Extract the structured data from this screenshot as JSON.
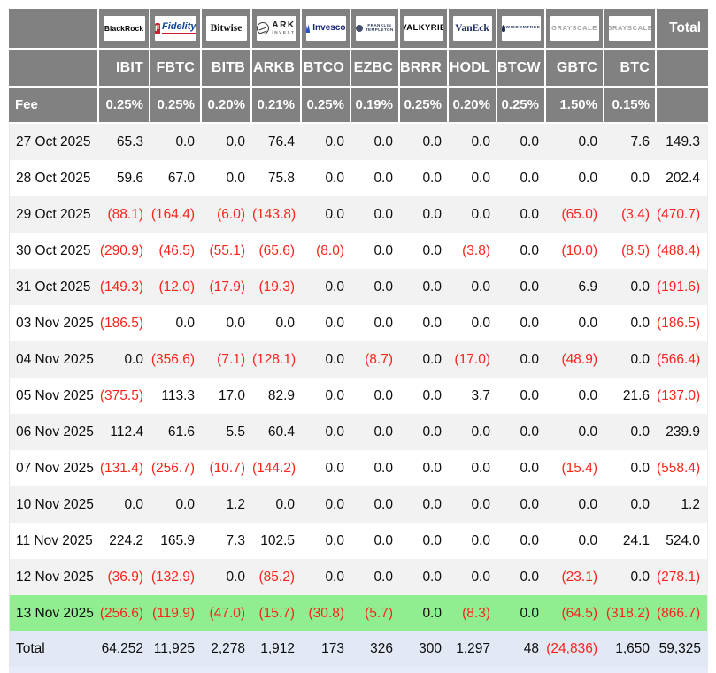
{
  "table": {
    "fee_label": "Fee",
    "total_label": "Total",
    "header_bg": "#818181",
    "stripe_color": "#f2f2f3",
    "highlight_color": "#90ee90",
    "total_row_bg": "#e3e8f5",
    "negative_color": "#fa241c",
    "companies": [
      {
        "id": "blackrock",
        "ticker": "IBIT",
        "fee": "0.25%",
        "logo": {
          "text": "BlackRock"
        }
      },
      {
        "id": "fidelity",
        "ticker": "FBTC",
        "fee": "0.25%",
        "logo": {
          "mark": "F",
          "text": "Fidelity"
        }
      },
      {
        "id": "bitwise",
        "ticker": "BITB",
        "fee": "0.20%",
        "logo": {
          "text": "Bitwise"
        }
      },
      {
        "id": "ark",
        "ticker": "ARKB",
        "fee": "0.21%",
        "logo": {
          "icon": "ark-circle-icon",
          "text": "ARK",
          "sub": "INVEST"
        }
      },
      {
        "id": "invesco",
        "ticker": "BTCO",
        "fee": "0.25%",
        "logo": {
          "icon": "invesco-peaks-icon",
          "text": "Invesco"
        }
      },
      {
        "id": "franklin",
        "ticker": "EZBC",
        "fee": "0.19%",
        "logo": {
          "icon": "franklin-seal-icon",
          "text": "FRANKLIN",
          "sub": "TEMPLETON"
        }
      },
      {
        "id": "valkyrie",
        "ticker": "BRRR",
        "fee": "0.25%",
        "logo": {
          "text": "VALKYRIE"
        }
      },
      {
        "id": "vaneck",
        "ticker": "HODL",
        "fee": "0.20%",
        "logo": {
          "text": "VanEck"
        }
      },
      {
        "id": "wisdomtree",
        "ticker": "BTCW",
        "fee": "0.25%",
        "logo": {
          "icon": "wisdomtree-canopy-icon",
          "text": "WISDOMTREE"
        }
      },
      {
        "id": "grayscale",
        "ticker": "GBTC",
        "fee": "1.50%",
        "logo": {
          "text": "GRAYSCALE"
        }
      },
      {
        "id": "grayscale-mini",
        "ticker": "BTC",
        "fee": "0.15%",
        "logo": {
          "text": "GRAYSCALE"
        }
      }
    ],
    "rows": [
      {
        "date": "27 Oct 2025",
        "values": [
          "65.3",
          "0.0",
          "0.0",
          "76.4",
          "0.0",
          "0.0",
          "0.0",
          "0.0",
          "0.0",
          "0.0",
          "7.6"
        ],
        "total": "149.3"
      },
      {
        "date": "28 Oct 2025",
        "values": [
          "59.6",
          "67.0",
          "0.0",
          "75.8",
          "0.0",
          "0.0",
          "0.0",
          "0.0",
          "0.0",
          "0.0",
          "0.0"
        ],
        "total": "202.4"
      },
      {
        "date": "29 Oct 2025",
        "values": [
          "(88.1)",
          "(164.4)",
          "(6.0)",
          "(143.8)",
          "0.0",
          "0.0",
          "0.0",
          "0.0",
          "0.0",
          "(65.0)",
          "(3.4)"
        ],
        "total": "(470.7)"
      },
      {
        "date": "30 Oct 2025",
        "values": [
          "(290.9)",
          "(46.5)",
          "(55.1)",
          "(65.6)",
          "(8.0)",
          "0.0",
          "0.0",
          "(3.8)",
          "0.0",
          "(10.0)",
          "(8.5)"
        ],
        "total": "(488.4)"
      },
      {
        "date": "31 Oct 2025",
        "values": [
          "(149.3)",
          "(12.0)",
          "(17.9)",
          "(19.3)",
          "0.0",
          "0.0",
          "0.0",
          "0.0",
          "0.0",
          "6.9",
          "0.0"
        ],
        "total": "(191.6)"
      },
      {
        "date": "03 Nov 2025",
        "values": [
          "(186.5)",
          "0.0",
          "0.0",
          "0.0",
          "0.0",
          "0.0",
          "0.0",
          "0.0",
          "0.0",
          "0.0",
          "0.0"
        ],
        "total": "(186.5)"
      },
      {
        "date": "04 Nov 2025",
        "values": [
          "0.0",
          "(356.6)",
          "(7.1)",
          "(128.1)",
          "0.0",
          "(8.7)",
          "0.0",
          "(17.0)",
          "0.0",
          "(48.9)",
          "0.0"
        ],
        "total": "(566.4)"
      },
      {
        "date": "05 Nov 2025",
        "values": [
          "(375.5)",
          "113.3",
          "17.0",
          "82.9",
          "0.0",
          "0.0",
          "0.0",
          "3.7",
          "0.0",
          "0.0",
          "21.6"
        ],
        "total": "(137.0)"
      },
      {
        "date": "06 Nov 2025",
        "values": [
          "112.4",
          "61.6",
          "5.5",
          "60.4",
          "0.0",
          "0.0",
          "0.0",
          "0.0",
          "0.0",
          "0.0",
          "0.0"
        ],
        "total": "239.9"
      },
      {
        "date": "07 Nov 2025",
        "values": [
          "(131.4)",
          "(256.7)",
          "(10.7)",
          "(144.2)",
          "0.0",
          "0.0",
          "0.0",
          "0.0",
          "0.0",
          "(15.4)",
          "0.0"
        ],
        "total": "(558.4)"
      },
      {
        "date": "10 Nov 2025",
        "values": [
          "0.0",
          "0.0",
          "1.2",
          "0.0",
          "0.0",
          "0.0",
          "0.0",
          "0.0",
          "0.0",
          "0.0",
          "0.0"
        ],
        "total": "1.2"
      },
      {
        "date": "11 Nov 2025",
        "values": [
          "224.2",
          "165.9",
          "7.3",
          "102.5",
          "0.0",
          "0.0",
          "0.0",
          "0.0",
          "0.0",
          "0.0",
          "24.1"
        ],
        "total": "524.0"
      },
      {
        "date": "12 Nov 2025",
        "values": [
          "(36.9)",
          "(132.9)",
          "0.0",
          "(85.2)",
          "0.0",
          "0.0",
          "0.0",
          "0.0",
          "0.0",
          "(23.1)",
          "0.0"
        ],
        "total": "(278.1)"
      },
      {
        "date": "13 Nov 2025",
        "highlight": true,
        "values": [
          "(256.6)",
          "(119.9)",
          "(47.0)",
          "(15.7)",
          "(30.8)",
          "(5.7)",
          "0.0",
          "(8.3)",
          "0.0",
          "(64.5)",
          "(318.2)"
        ],
        "total": "(866.7)"
      }
    ],
    "total_row": {
      "label": "Total",
      "values": [
        "64,252",
        "11,925",
        "2,278",
        "1,912",
        "173",
        "326",
        "300",
        "1,297",
        "48",
        "(24,836)",
        "1,650"
      ],
      "total": "59,325"
    }
  }
}
